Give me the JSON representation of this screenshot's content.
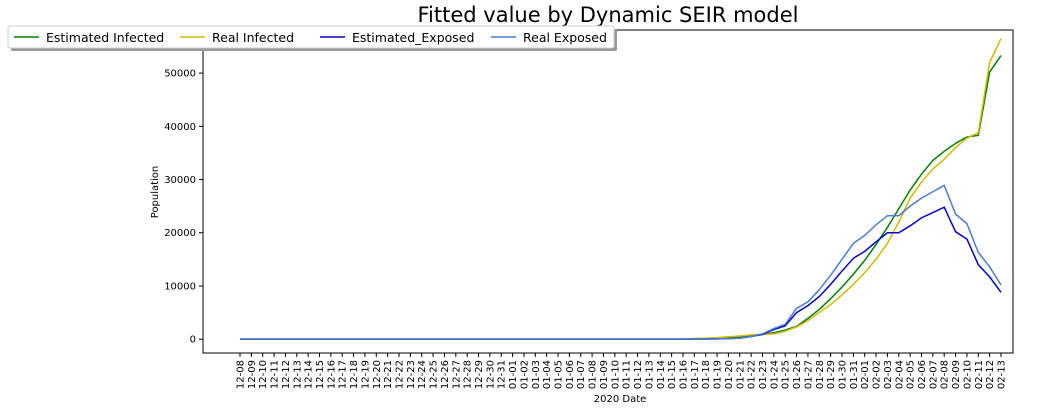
{
  "chart_data": {
    "type": "line",
    "title": "Fitted value by Dynamic SEIR model",
    "xlabel": "2020 Date",
    "ylabel": "Population",
    "categories": [
      "12-08",
      "12-09",
      "12-10",
      "12-11",
      "12-12",
      "12-13",
      "12-14",
      "12-15",
      "12-16",
      "12-17",
      "12-18",
      "12-19",
      "12-20",
      "12-21",
      "12-22",
      "12-23",
      "12-24",
      "12-25",
      "12-26",
      "12-27",
      "12-28",
      "12-29",
      "12-30",
      "12-31",
      "01-01",
      "01-02",
      "01-03",
      "01-04",
      "01-05",
      "01-06",
      "01-07",
      "01-08",
      "01-09",
      "01-10",
      "01-11",
      "01-12",
      "01-13",
      "01-14",
      "01-15",
      "01-16",
      "01-17",
      "01-18",
      "01-19",
      "01-20",
      "01-21",
      "01-22",
      "01-23",
      "01-24",
      "01-25",
      "01-26",
      "01-27",
      "01-28",
      "01-29",
      "01-30",
      "01-31",
      "02-01",
      "02-02",
      "02-03",
      "02-04",
      "02-05",
      "02-06",
      "02-07",
      "02-08",
      "02-09",
      "02-10",
      "02-11",
      "02-12",
      "02-13"
    ],
    "series": [
      {
        "name": "Estimated Infected",
        "color": "#008000",
        "values": [
          0,
          0,
          0,
          0,
          0,
          0,
          0,
          0,
          0,
          0,
          0,
          0,
          0,
          0,
          0,
          0,
          0,
          0,
          0,
          0,
          0,
          0,
          0,
          0,
          0,
          0,
          0,
          0,
          0,
          0,
          0,
          0,
          0,
          0,
          0,
          0,
          0,
          0,
          0,
          0,
          100,
          150,
          200,
          300,
          400,
          600,
          900,
          1200,
          1700,
          2400,
          3900,
          5600,
          7600,
          9800,
          12200,
          14800,
          17800,
          21000,
          24500,
          28000,
          31000,
          33600,
          35300,
          36800,
          38000,
          38300,
          50200,
          53300
        ]
      },
      {
        "name": "Real Infected",
        "color": "#d4b800",
        "values": [
          0,
          0,
          0,
          0,
          0,
          0,
          0,
          0,
          0,
          0,
          0,
          0,
          0,
          0,
          0,
          0,
          0,
          0,
          0,
          0,
          0,
          0,
          0,
          0,
          0,
          0,
          0,
          0,
          0,
          0,
          0,
          0,
          0,
          0,
          0,
          0,
          0,
          0,
          0,
          0,
          100,
          200,
          300,
          450,
          600,
          800,
          900,
          1000,
          1500,
          2300,
          3500,
          5000,
          6500,
          8300,
          10300,
          12500,
          15000,
          18000,
          22000,
          26500,
          29500,
          32000,
          33800,
          36000,
          37800,
          38800,
          52000,
          56500
        ]
      },
      {
        "name": "Estimated_Exposed",
        "color": "#0000cc",
        "values": [
          0,
          0,
          0,
          0,
          0,
          0,
          0,
          0,
          0,
          0,
          0,
          0,
          0,
          0,
          0,
          0,
          0,
          0,
          0,
          0,
          0,
          0,
          0,
          0,
          0,
          0,
          0,
          0,
          0,
          0,
          0,
          0,
          0,
          0,
          0,
          0,
          0,
          0,
          0,
          0,
          0,
          0,
          50,
          100,
          200,
          500,
          900,
          1800,
          2500,
          5000,
          6300,
          8000,
          10300,
          12800,
          15200,
          16500,
          18300,
          20000,
          20000,
          21300,
          22800,
          23800,
          24800,
          20200,
          18800,
          14000,
          11700,
          8800
        ]
      },
      {
        "name": "Real Exposed",
        "color": "#4a7bd6",
        "values": [
          0,
          0,
          0,
          0,
          0,
          0,
          0,
          0,
          0,
          0,
          0,
          0,
          0,
          0,
          0,
          0,
          0,
          0,
          0,
          0,
          0,
          0,
          0,
          0,
          0,
          0,
          0,
          0,
          0,
          0,
          0,
          0,
          0,
          0,
          0,
          0,
          0,
          0,
          0,
          0,
          0,
          0,
          50,
          100,
          200,
          500,
          1000,
          2000,
          2800,
          5800,
          7000,
          9300,
          12000,
          15000,
          18000,
          19500,
          21500,
          23200,
          23200,
          25000,
          26500,
          27700,
          28900,
          23500,
          21700,
          16300,
          13600,
          10200
        ]
      }
    ],
    "ylim": [
      -2600,
      58100
    ],
    "yticks": [
      0,
      10000,
      20000,
      30000,
      40000,
      50000
    ],
    "grid": false,
    "legend": "upper left"
  }
}
